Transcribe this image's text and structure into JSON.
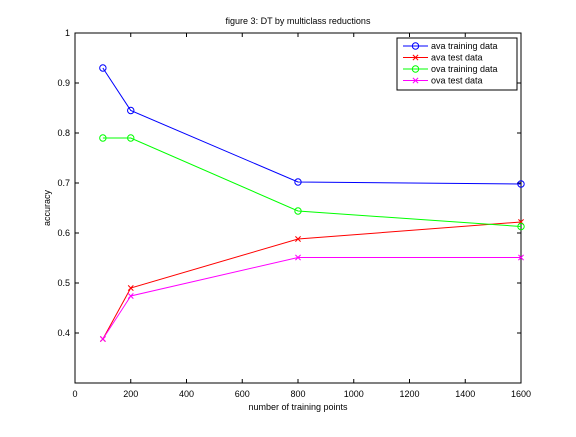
{
  "chart_data": {
    "type": "line",
    "title": "figure 3: DT by multiclass reductions",
    "xlabel": "number of training points",
    "ylabel": "accuracy",
    "xlim": [
      0,
      1600
    ],
    "ylim": [
      0.3,
      1
    ],
    "xticks": [
      0,
      200,
      400,
      600,
      800,
      1000,
      1200,
      1400,
      1600
    ],
    "yticks": [
      0.4,
      0.5,
      0.6,
      0.7,
      0.8,
      0.9,
      1
    ],
    "grid": false,
    "legend_position": "top-right",
    "x": [
      100,
      200,
      800,
      1600
    ],
    "series": [
      {
        "name": "ava training data",
        "color": "#0000ff",
        "marker": "circle",
        "values": [
          0.93,
          0.845,
          0.702,
          0.698
        ]
      },
      {
        "name": "ava test data",
        "color": "#ff0000",
        "marker": "x",
        "values": [
          0.388,
          0.49,
          0.588,
          0.622
        ]
      },
      {
        "name": "ova training data",
        "color": "#00ff00",
        "marker": "circle",
        "values": [
          0.79,
          0.79,
          0.644,
          0.613
        ]
      },
      {
        "name": "ova test data",
        "color": "#ff00ff",
        "marker": "x",
        "values": [
          0.388,
          0.474,
          0.551,
          0.551
        ]
      }
    ]
  }
}
